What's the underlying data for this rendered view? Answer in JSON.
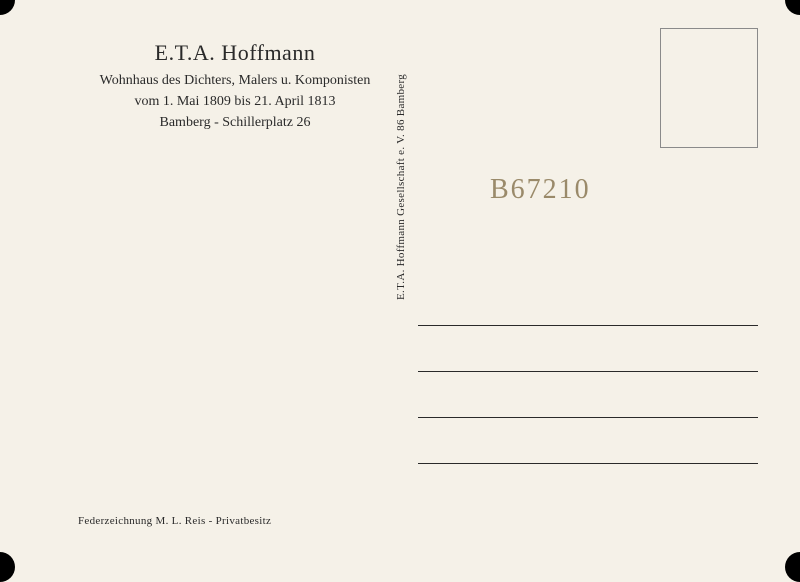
{
  "header": {
    "title": "E.T.A. Hoffmann",
    "line1": "Wohnhaus des Dichters, Malers u. Komponisten",
    "line2": "vom 1. Mai 1809 bis 21. April 1813",
    "line3": "Bamberg - Schillerplatz 26"
  },
  "publisher": "E.T.A. Hoffmann Gesellschaft e. V.   86 Bamberg",
  "handwritten_note": "B67210",
  "credit": "Federzeichnung M. L. Reis  -  Privatbesitz",
  "styling": {
    "background_color": "#f5f1e8",
    "text_color": "#2a2a2a",
    "handwriting_color": "#9a8a6a",
    "stamp_border_color": "#8a8a8a",
    "line_color": "#2a2a2a",
    "title_fontsize": 22,
    "subtitle_fontsize": 14,
    "small_fontsize": 11,
    "handwritten_fontsize": 28,
    "address_line_count": 4,
    "address_line_spacing": 46,
    "stamp_box": {
      "width": 98,
      "height": 120
    }
  }
}
